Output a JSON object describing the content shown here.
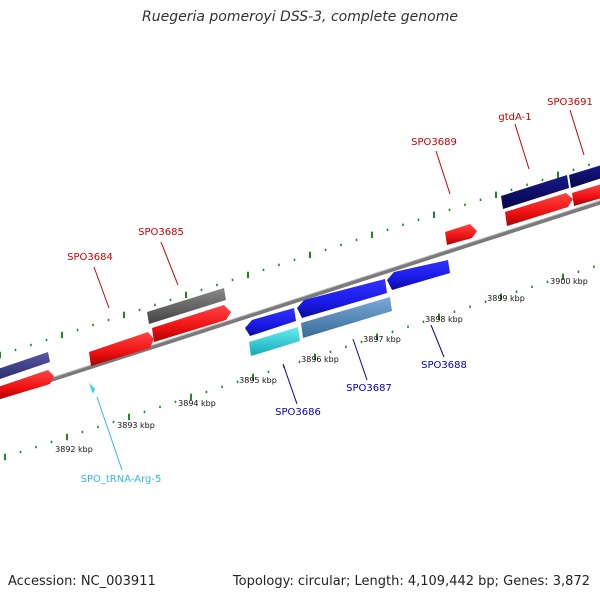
{
  "title": "Ruegeria pomeroyi DSS-3, complete genome",
  "footer": {
    "accession": "Accession: NC_003911",
    "summary": "Topology: circular; Length: 4,109,442 bp; Genes: 3,872"
  },
  "ticks": [
    {
      "label": "3892 kbp"
    },
    {
      "label": "3893 kbp"
    },
    {
      "label": "3894 kbp"
    },
    {
      "label": "3895 kbp"
    },
    {
      "label": "3896 kbp"
    },
    {
      "label": "3897 kbp"
    },
    {
      "label": "3898 kbp"
    },
    {
      "label": "3899 kbp"
    },
    {
      "label": "3900 kbp"
    }
  ],
  "genes": [
    {
      "name": "SPO3684",
      "strand": "forward",
      "color": "#dd1111"
    },
    {
      "name": "SPO3685",
      "strand": "forward",
      "color": "#dd1111"
    },
    {
      "name": "SPO3686",
      "strand": "reverse",
      "color": "#1a1ab0"
    },
    {
      "name": "SPO3687",
      "strand": "reverse",
      "color": "#1a1ab0"
    },
    {
      "name": "SPO3688",
      "strand": "reverse",
      "color": "#1a1ab0"
    },
    {
      "name": "SPO3689",
      "strand": "forward",
      "color": "#dd1111"
    },
    {
      "name": "gtdA-1",
      "strand": "forward",
      "color": "#dd1111"
    },
    {
      "name": "SPO3691",
      "strand": "forward",
      "color": "#dd1111"
    },
    {
      "name": "SPO_tRNA-Arg-5",
      "strand": "forward",
      "color": "#33bbdd"
    }
  ],
  "colors": {
    "forward_cds": "#ee1111",
    "reverse_cds": "#1a1ae6",
    "trna": "#33ccdd",
    "gray_feature": "#666666",
    "navy_feature": "#0a0a6e",
    "slate_feature": "#4682b4",
    "purple_feature": "#3c3c8c",
    "backbone": "#888888",
    "tick": "#228822"
  }
}
